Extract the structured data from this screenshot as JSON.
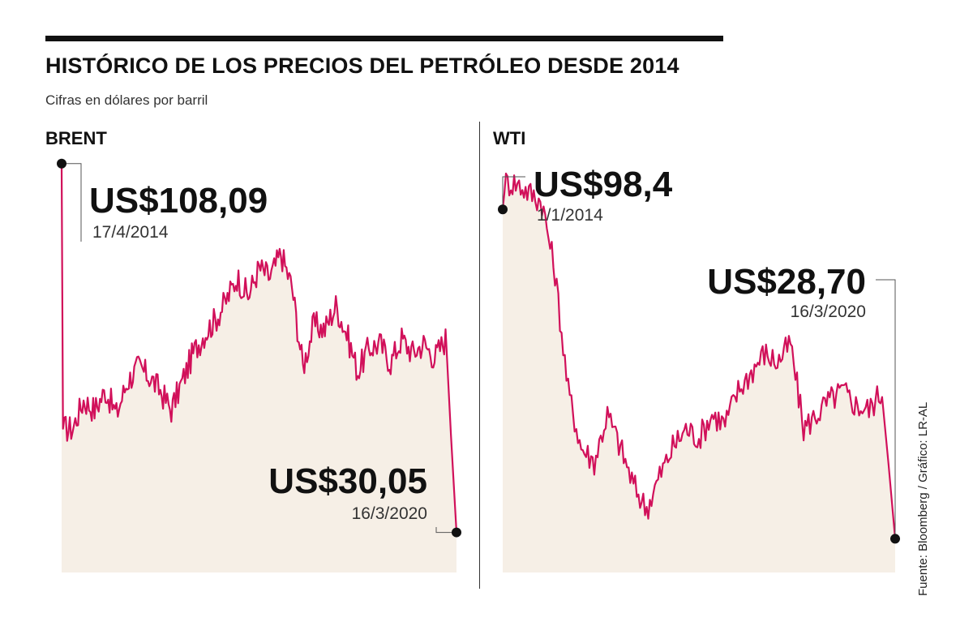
{
  "header": {
    "title": "HISTÓRICO DE LOS PRECIOS DEL PETRÓLEO DESDE 2014",
    "subtitle": "Cifras en dólares por barril"
  },
  "source": "Fuente: Bloomberg / Gráfico: LR-AL",
  "colors": {
    "line": "#d1105a",
    "area": "#f6efe6",
    "text": "#111111"
  },
  "chart_data": [
    {
      "type": "area",
      "series_name": "BRENT",
      "x_range": [
        "17/4/2014",
        "16/3/2020"
      ],
      "y_range": [
        25,
        110
      ],
      "grid": false,
      "values": [
        108.09,
        52,
        58,
        56,
        60,
        55,
        62,
        65,
        63,
        60,
        56,
        62,
        68,
        72,
        75,
        79,
        84,
        80,
        86,
        84,
        89,
        82,
        65,
        74,
        73,
        78,
        72,
        64,
        69,
        70,
        66,
        71,
        68,
        70,
        67,
        71,
        30.05
      ],
      "annotations": [
        {
          "value": "US$108,09",
          "date": "17/4/2014"
        },
        {
          "value": "US$30,05",
          "date": "16/3/2020"
        }
      ]
    },
    {
      "type": "area",
      "series_name": "WTI",
      "x_range": [
        "1/1/2014",
        "16/3/2020"
      ],
      "y_range": [
        25,
        110
      ],
      "grid": false,
      "values": [
        98.4,
        104,
        102,
        100,
        85,
        60,
        48,
        45,
        55,
        48,
        40,
        35,
        42,
        48,
        52,
        50,
        55,
        53,
        60,
        64,
        68,
        66,
        70,
        52,
        55,
        58,
        60,
        57,
        56,
        60,
        28.7
      ],
      "annotations": [
        {
          "value": "US$98,4",
          "date": "1/1/2014"
        },
        {
          "value": "US$28,70",
          "date": "16/3/2020"
        }
      ]
    }
  ]
}
